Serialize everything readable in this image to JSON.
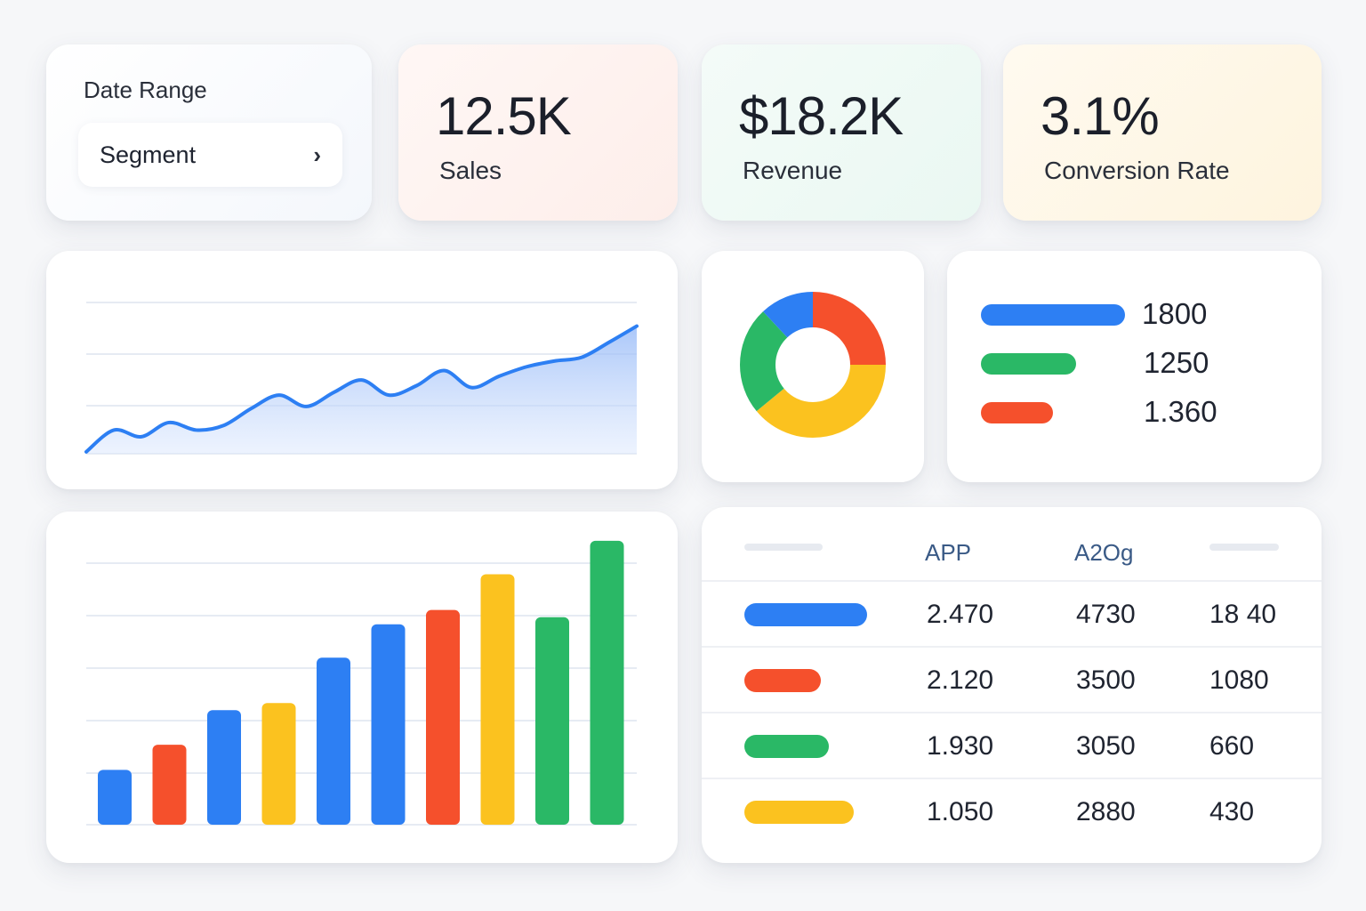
{
  "filters": {
    "title": "Date Range",
    "segment_label": "Segment",
    "segment_chevron": "›"
  },
  "kpis": {
    "sales": {
      "value": "12.5K",
      "label": "Sales"
    },
    "revenue": {
      "value": "$18.2K",
      "label": "Revenue"
    },
    "conversion": {
      "value": "3.1%",
      "label": "Conversion Rate"
    }
  },
  "colors": {
    "blue": "#2d7ff3",
    "red": "#f5502c",
    "green": "#2ab866",
    "yellow": "#fbc21f"
  },
  "chart_data": [
    {
      "type": "area",
      "title": "",
      "xlabel": "",
      "ylabel": "",
      "grid": true,
      "x": [
        0,
        1,
        2,
        3,
        4,
        5,
        6,
        7,
        8,
        9,
        10,
        11,
        12,
        13,
        14,
        15,
        16,
        17,
        18,
        19,
        20
      ],
      "values": [
        2,
        25,
        18,
        33,
        25,
        30,
        48,
        62,
        50,
        65,
        78,
        62,
        72,
        88,
        70,
        82,
        92,
        98,
        102,
        118,
        135
      ],
      "ylim": [
        0,
        160
      ],
      "color": "blue"
    },
    {
      "type": "pie",
      "donut": true,
      "slices": [
        {
          "color": "red",
          "value": 25
        },
        {
          "color": "yellow",
          "value": 39
        },
        {
          "color": "green",
          "value": 24
        },
        {
          "color": "blue",
          "value": 12
        }
      ]
    },
    {
      "type": "bar",
      "orientation": "horizontal",
      "categories": [
        "",
        "",
        ""
      ],
      "values": [
        1800,
        1250,
        1.36
      ],
      "labels": [
        "1800",
        "1250",
        "1.360"
      ],
      "colors": [
        "blue",
        "green",
        "red"
      ],
      "relative_fill": [
        1.0,
        0.66,
        0.5
      ]
    },
    {
      "type": "bar",
      "title": "",
      "grid": true,
      "values": [
        46,
        67,
        96,
        102,
        140,
        168,
        180,
        210,
        174,
        238
      ],
      "colors": [
        "blue",
        "red",
        "blue",
        "yellow",
        "blue",
        "blue",
        "red",
        "yellow",
        "green",
        "green"
      ],
      "ylim": [
        0,
        250
      ]
    },
    {
      "type": "table",
      "columns": [
        "",
        "APP",
        "A2Og",
        ""
      ],
      "rows": [
        {
          "color": "blue",
          "pill_fill": 1.0,
          "cells": [
            "2.470",
            "4730",
            "18 40"
          ]
        },
        {
          "color": "red",
          "pill_fill": 0.62,
          "cells": [
            "2.120",
            "3500",
            "1080"
          ]
        },
        {
          "color": "green",
          "pill_fill": 0.69,
          "cells": [
            "1.930",
            "3050",
            "660"
          ]
        },
        {
          "color": "yellow",
          "pill_fill": 0.89,
          "cells": [
            "1.050",
            "2880",
            "430"
          ]
        }
      ]
    }
  ]
}
